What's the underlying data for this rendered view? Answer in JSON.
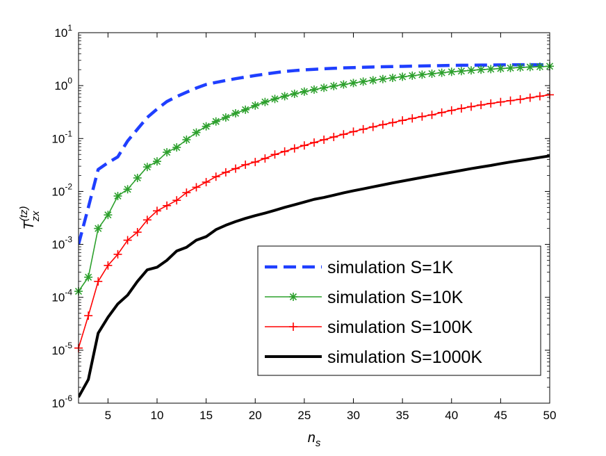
{
  "chart_data": {
    "type": "line",
    "yscale": "log",
    "title": "",
    "xlabel": {
      "base": "n",
      "sub": "s"
    },
    "ylabel": {
      "base": "T",
      "sub": "zx",
      "sup": "(tz)"
    },
    "xlim": [
      2,
      50
    ],
    "ylim": [
      1e-06,
      10
    ],
    "x_ticks": [
      5,
      10,
      15,
      20,
      25,
      30,
      35,
      40,
      45,
      50
    ],
    "y_ticks": [
      {
        "value": 1e-06,
        "base": "10",
        "exp": "-6"
      },
      {
        "value": 1e-05,
        "base": "10",
        "exp": "-5"
      },
      {
        "value": 0.0001,
        "base": "10",
        "exp": "-4"
      },
      {
        "value": 0.001,
        "base": "10",
        "exp": "-3"
      },
      {
        "value": 0.01,
        "base": "10",
        "exp": "-2"
      },
      {
        "value": 0.1,
        "base": "10",
        "exp": "-1"
      },
      {
        "value": 1,
        "base": "10",
        "exp": "0"
      },
      {
        "value": 10,
        "base": "10",
        "exp": "1"
      }
    ],
    "grid": false,
    "legend_position": "bottom-right",
    "series": [
      {
        "name": "simulation S=1K",
        "color": "#1f3fff",
        "style": "dashed",
        "marker": "none",
        "x": [
          2,
          3,
          4,
          5,
          6,
          7,
          8,
          9,
          10,
          11,
          12,
          13,
          14,
          15,
          16,
          17,
          18,
          19,
          20,
          21,
          22,
          23,
          24,
          25,
          26,
          27,
          28,
          29,
          30,
          31,
          32,
          33,
          34,
          35,
          36,
          37,
          38,
          39,
          40,
          41,
          42,
          43,
          44,
          45,
          46,
          47,
          48,
          49,
          50
        ],
        "values": [
          0.001,
          0.005,
          0.026,
          0.035,
          0.045,
          0.09,
          0.15,
          0.25,
          0.36,
          0.5,
          0.62,
          0.75,
          0.9,
          1.05,
          1.15,
          1.25,
          1.35,
          1.45,
          1.55,
          1.65,
          1.75,
          1.85,
          1.92,
          1.98,
          2.03,
          2.08,
          2.12,
          2.16,
          2.19,
          2.22,
          2.25,
          2.27,
          2.29,
          2.31,
          2.33,
          2.35,
          2.37,
          2.39,
          2.41,
          2.42,
          2.43,
          2.44,
          2.45,
          2.46,
          2.47,
          2.48,
          2.48,
          2.48,
          2.45
        ]
      },
      {
        "name": "simulation S=10K",
        "color": "#2ca02c",
        "style": "solid",
        "marker": "asterisk",
        "x": [
          2,
          3,
          4,
          5,
          6,
          7,
          8,
          9,
          10,
          11,
          12,
          13,
          14,
          15,
          16,
          17,
          18,
          19,
          20,
          21,
          22,
          23,
          24,
          25,
          26,
          27,
          28,
          29,
          30,
          31,
          32,
          33,
          34,
          35,
          36,
          37,
          38,
          39,
          40,
          41,
          42,
          43,
          44,
          45,
          46,
          47,
          48,
          49,
          50
        ],
        "values": [
          0.00013,
          0.00024,
          0.002,
          0.0036,
          0.0082,
          0.011,
          0.018,
          0.029,
          0.037,
          0.055,
          0.068,
          0.095,
          0.13,
          0.17,
          0.21,
          0.25,
          0.3,
          0.35,
          0.42,
          0.49,
          0.56,
          0.63,
          0.7,
          0.77,
          0.84,
          0.91,
          0.98,
          1.05,
          1.12,
          1.19,
          1.26,
          1.33,
          1.4,
          1.47,
          1.54,
          1.61,
          1.68,
          1.75,
          1.82,
          1.88,
          1.94,
          2.0,
          2.05,
          2.1,
          2.15,
          2.2,
          2.24,
          2.28,
          2.32
        ]
      },
      {
        "name": "simulation S=100K",
        "color": "#ff0000",
        "style": "solid",
        "marker": "plus",
        "x": [
          2,
          3,
          4,
          5,
          6,
          7,
          8,
          9,
          10,
          11,
          12,
          13,
          14,
          15,
          16,
          17,
          18,
          19,
          20,
          21,
          22,
          23,
          24,
          25,
          26,
          27,
          28,
          29,
          30,
          31,
          32,
          33,
          34,
          35,
          36,
          37,
          38,
          39,
          40,
          41,
          42,
          43,
          44,
          45,
          46,
          47,
          48,
          49,
          50
        ],
        "values": [
          1.1e-05,
          4.5e-05,
          0.0002,
          0.0004,
          0.00065,
          0.0012,
          0.0017,
          0.0029,
          0.0043,
          0.0054,
          0.0068,
          0.0095,
          0.012,
          0.015,
          0.019,
          0.023,
          0.027,
          0.032,
          0.036,
          0.042,
          0.05,
          0.057,
          0.065,
          0.074,
          0.084,
          0.095,
          0.107,
          0.12,
          0.135,
          0.15,
          0.166,
          0.183,
          0.2,
          0.22,
          0.24,
          0.26,
          0.28,
          0.31,
          0.34,
          0.37,
          0.4,
          0.43,
          0.46,
          0.49,
          0.52,
          0.55,
          0.59,
          0.63,
          0.67
        ]
      },
      {
        "name": "simulation S=1000K",
        "color": "#000000",
        "style": "solid",
        "marker": "none",
        "x": [
          2,
          3,
          4,
          5,
          6,
          7,
          8,
          9,
          10,
          11,
          12,
          13,
          14,
          15,
          16,
          17,
          18,
          19,
          20,
          21,
          22,
          23,
          24,
          25,
          26,
          27,
          28,
          29,
          30,
          31,
          32,
          33,
          34,
          35,
          36,
          37,
          38,
          39,
          40,
          41,
          42,
          43,
          44,
          45,
          46,
          47,
          48,
          49,
          50
        ],
        "values": [
          1.3e-06,
          2.8e-06,
          2.1e-05,
          4.2e-05,
          7.5e-05,
          0.00011,
          0.0002,
          0.00033,
          0.00037,
          0.0005,
          0.00075,
          0.00088,
          0.0012,
          0.0014,
          0.0019,
          0.0023,
          0.0027,
          0.0031,
          0.0035,
          0.0039,
          0.0044,
          0.005,
          0.0056,
          0.0063,
          0.0071,
          0.0077,
          0.0085,
          0.0094,
          0.0103,
          0.0112,
          0.0122,
          0.0133,
          0.0145,
          0.0157,
          0.017,
          0.0184,
          0.0199,
          0.0215,
          0.0232,
          0.025,
          0.027,
          0.029,
          0.031,
          0.0335,
          0.036,
          0.0385,
          0.041,
          0.044,
          0.047
        ]
      }
    ]
  }
}
